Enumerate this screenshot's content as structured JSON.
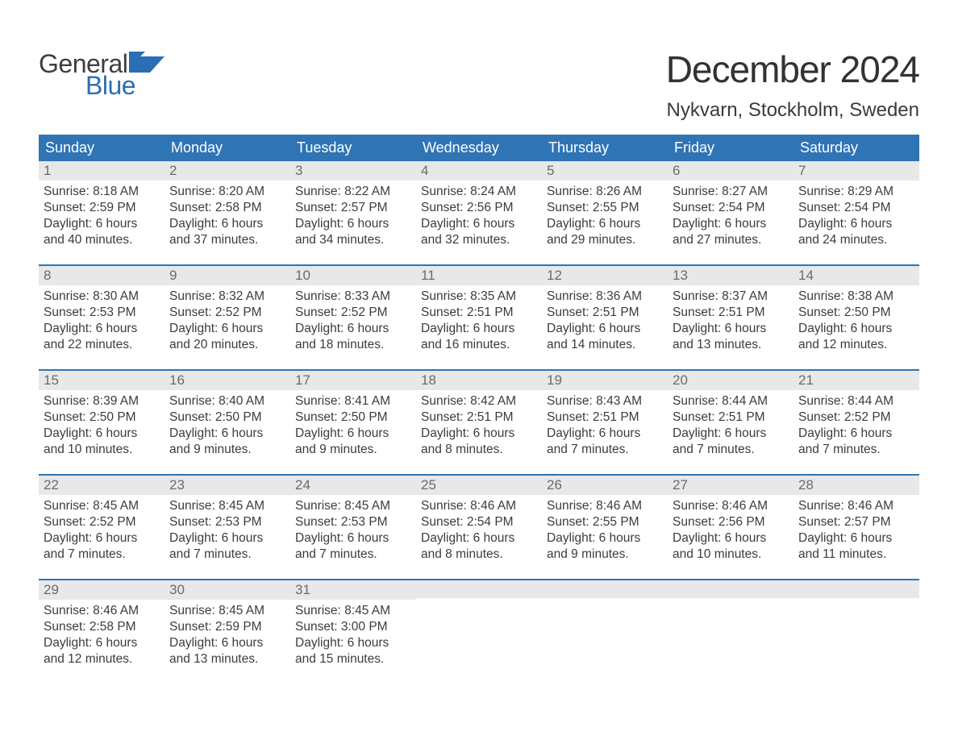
{
  "brand": {
    "text1": "General",
    "text2": "Blue",
    "flag_color": "#2a6fb5"
  },
  "title": "December 2024",
  "location": "Nykvarn, Stockholm, Sweden",
  "colors": {
    "header_bg": "#2f74b5",
    "header_text": "#ffffff",
    "daynum_bg": "#e8e8e8",
    "daynum_text": "#6b6b6b",
    "body_text": "#3c3c3c",
    "week_border": "#2f74b5",
    "page_bg": "#ffffff"
  },
  "typography": {
    "title_fontsize": 46,
    "location_fontsize": 24,
    "weekday_fontsize": 18,
    "daynum_fontsize": 17,
    "body_fontsize": 15.5,
    "logo_fontsize": 32
  },
  "weekdays": [
    "Sunday",
    "Monday",
    "Tuesday",
    "Wednesday",
    "Thursday",
    "Friday",
    "Saturday"
  ],
  "weeks": [
    [
      {
        "n": "1",
        "l": [
          "Sunrise: 8:18 AM",
          "Sunset: 2:59 PM",
          "Daylight: 6 hours",
          "and 40 minutes."
        ]
      },
      {
        "n": "2",
        "l": [
          "Sunrise: 8:20 AM",
          "Sunset: 2:58 PM",
          "Daylight: 6 hours",
          "and 37 minutes."
        ]
      },
      {
        "n": "3",
        "l": [
          "Sunrise: 8:22 AM",
          "Sunset: 2:57 PM",
          "Daylight: 6 hours",
          "and 34 minutes."
        ]
      },
      {
        "n": "4",
        "l": [
          "Sunrise: 8:24 AM",
          "Sunset: 2:56 PM",
          "Daylight: 6 hours",
          "and 32 minutes."
        ]
      },
      {
        "n": "5",
        "l": [
          "Sunrise: 8:26 AM",
          "Sunset: 2:55 PM",
          "Daylight: 6 hours",
          "and 29 minutes."
        ]
      },
      {
        "n": "6",
        "l": [
          "Sunrise: 8:27 AM",
          "Sunset: 2:54 PM",
          "Daylight: 6 hours",
          "and 27 minutes."
        ]
      },
      {
        "n": "7",
        "l": [
          "Sunrise: 8:29 AM",
          "Sunset: 2:54 PM",
          "Daylight: 6 hours",
          "and 24 minutes."
        ]
      }
    ],
    [
      {
        "n": "8",
        "l": [
          "Sunrise: 8:30 AM",
          "Sunset: 2:53 PM",
          "Daylight: 6 hours",
          "and 22 minutes."
        ]
      },
      {
        "n": "9",
        "l": [
          "Sunrise: 8:32 AM",
          "Sunset: 2:52 PM",
          "Daylight: 6 hours",
          "and 20 minutes."
        ]
      },
      {
        "n": "10",
        "l": [
          "Sunrise: 8:33 AM",
          "Sunset: 2:52 PM",
          "Daylight: 6 hours",
          "and 18 minutes."
        ]
      },
      {
        "n": "11",
        "l": [
          "Sunrise: 8:35 AM",
          "Sunset: 2:51 PM",
          "Daylight: 6 hours",
          "and 16 minutes."
        ]
      },
      {
        "n": "12",
        "l": [
          "Sunrise: 8:36 AM",
          "Sunset: 2:51 PM",
          "Daylight: 6 hours",
          "and 14 minutes."
        ]
      },
      {
        "n": "13",
        "l": [
          "Sunrise: 8:37 AM",
          "Sunset: 2:51 PM",
          "Daylight: 6 hours",
          "and 13 minutes."
        ]
      },
      {
        "n": "14",
        "l": [
          "Sunrise: 8:38 AM",
          "Sunset: 2:50 PM",
          "Daylight: 6 hours",
          "and 12 minutes."
        ]
      }
    ],
    [
      {
        "n": "15",
        "l": [
          "Sunrise: 8:39 AM",
          "Sunset: 2:50 PM",
          "Daylight: 6 hours",
          "and 10 minutes."
        ]
      },
      {
        "n": "16",
        "l": [
          "Sunrise: 8:40 AM",
          "Sunset: 2:50 PM",
          "Daylight: 6 hours",
          "and 9 minutes."
        ]
      },
      {
        "n": "17",
        "l": [
          "Sunrise: 8:41 AM",
          "Sunset: 2:50 PM",
          "Daylight: 6 hours",
          "and 9 minutes."
        ]
      },
      {
        "n": "18",
        "l": [
          "Sunrise: 8:42 AM",
          "Sunset: 2:51 PM",
          "Daylight: 6 hours",
          "and 8 minutes."
        ]
      },
      {
        "n": "19",
        "l": [
          "Sunrise: 8:43 AM",
          "Sunset: 2:51 PM",
          "Daylight: 6 hours",
          "and 7 minutes."
        ]
      },
      {
        "n": "20",
        "l": [
          "Sunrise: 8:44 AM",
          "Sunset: 2:51 PM",
          "Daylight: 6 hours",
          "and 7 minutes."
        ]
      },
      {
        "n": "21",
        "l": [
          "Sunrise: 8:44 AM",
          "Sunset: 2:52 PM",
          "Daylight: 6 hours",
          "and 7 minutes."
        ]
      }
    ],
    [
      {
        "n": "22",
        "l": [
          "Sunrise: 8:45 AM",
          "Sunset: 2:52 PM",
          "Daylight: 6 hours",
          "and 7 minutes."
        ]
      },
      {
        "n": "23",
        "l": [
          "Sunrise: 8:45 AM",
          "Sunset: 2:53 PM",
          "Daylight: 6 hours",
          "and 7 minutes."
        ]
      },
      {
        "n": "24",
        "l": [
          "Sunrise: 8:45 AM",
          "Sunset: 2:53 PM",
          "Daylight: 6 hours",
          "and 7 minutes."
        ]
      },
      {
        "n": "25",
        "l": [
          "Sunrise: 8:46 AM",
          "Sunset: 2:54 PM",
          "Daylight: 6 hours",
          "and 8 minutes."
        ]
      },
      {
        "n": "26",
        "l": [
          "Sunrise: 8:46 AM",
          "Sunset: 2:55 PM",
          "Daylight: 6 hours",
          "and 9 minutes."
        ]
      },
      {
        "n": "27",
        "l": [
          "Sunrise: 8:46 AM",
          "Sunset: 2:56 PM",
          "Daylight: 6 hours",
          "and 10 minutes."
        ]
      },
      {
        "n": "28",
        "l": [
          "Sunrise: 8:46 AM",
          "Sunset: 2:57 PM",
          "Daylight: 6 hours",
          "and 11 minutes."
        ]
      }
    ],
    [
      {
        "n": "29",
        "l": [
          "Sunrise: 8:46 AM",
          "Sunset: 2:58 PM",
          "Daylight: 6 hours",
          "and 12 minutes."
        ]
      },
      {
        "n": "30",
        "l": [
          "Sunrise: 8:45 AM",
          "Sunset: 2:59 PM",
          "Daylight: 6 hours",
          "and 13 minutes."
        ]
      },
      {
        "n": "31",
        "l": [
          "Sunrise: 8:45 AM",
          "Sunset: 3:00 PM",
          "Daylight: 6 hours",
          "and 15 minutes."
        ]
      },
      {
        "n": "",
        "l": []
      },
      {
        "n": "",
        "l": []
      },
      {
        "n": "",
        "l": []
      },
      {
        "n": "",
        "l": []
      }
    ]
  ]
}
